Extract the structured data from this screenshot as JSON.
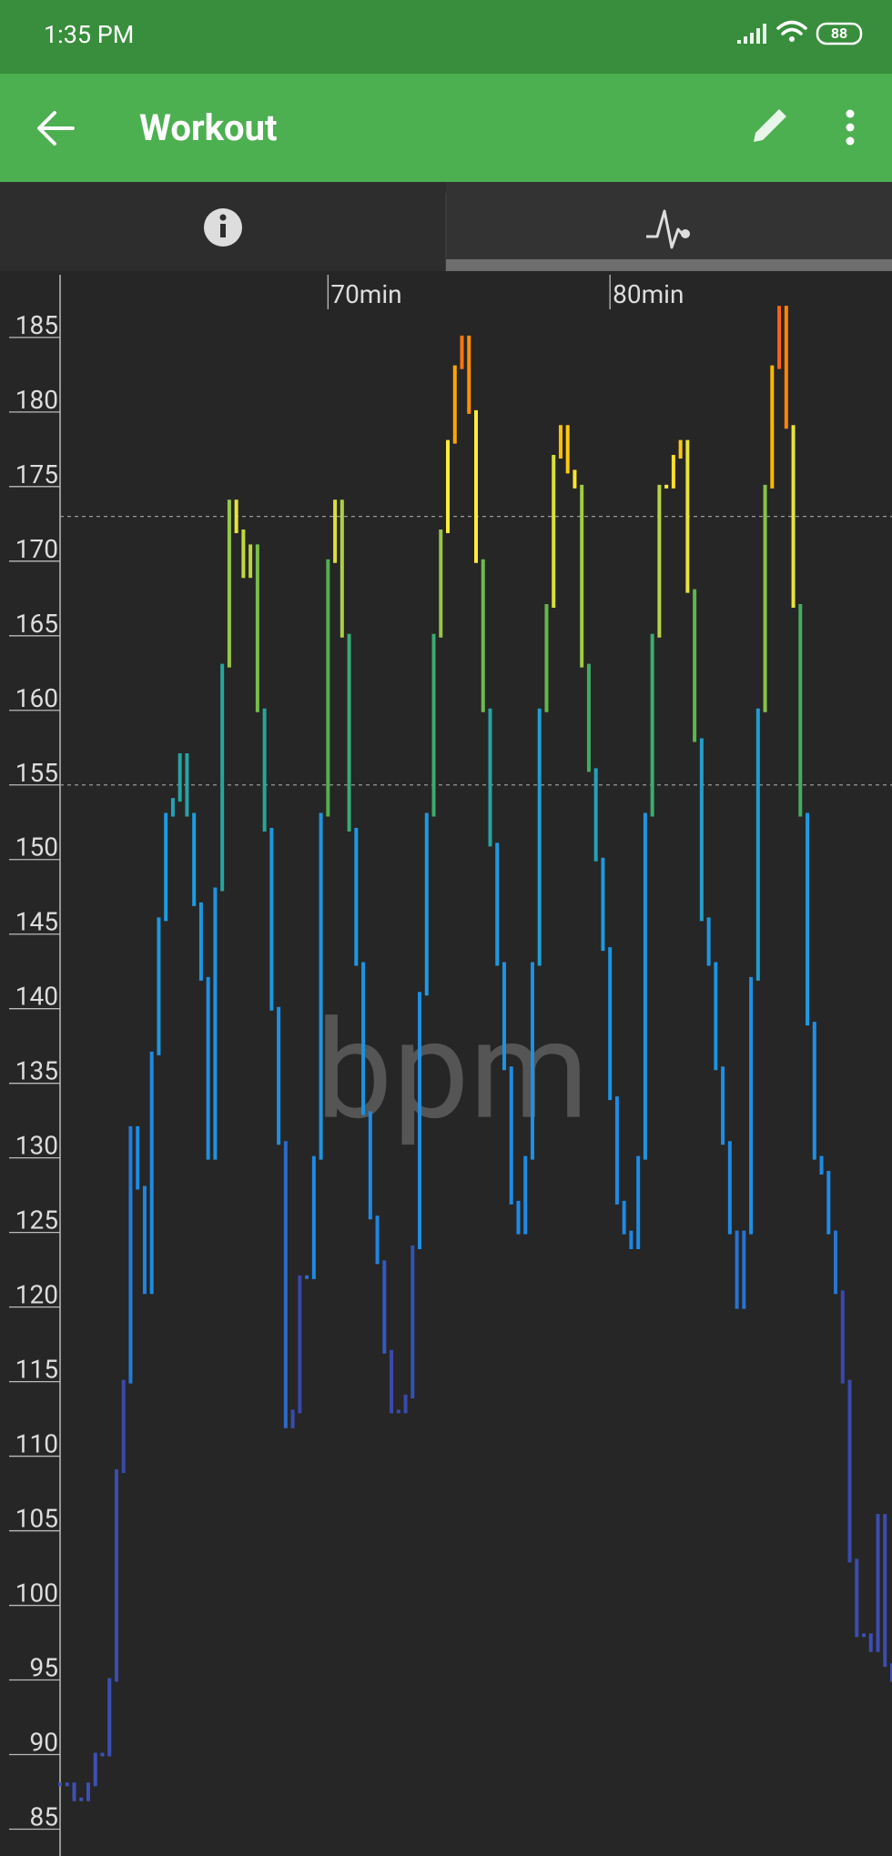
{
  "status_bar": {
    "time": "1:35 PM",
    "battery": "88"
  },
  "app_bar": {
    "title": "Workout"
  },
  "chart_data": {
    "type": "heart-rate-steps",
    "watermark": "bpm",
    "x": [
      60.5,
      60.75,
      61,
      61.25,
      61.5,
      61.75,
      62,
      62.25,
      62.5,
      62.75,
      63,
      63.25,
      63.5,
      63.75,
      64,
      64.25,
      64.5,
      64.75,
      65,
      65.25,
      65.5,
      65.75,
      66,
      66.25,
      66.5,
      66.75,
      67,
      67.25,
      67.5,
      67.75,
      68,
      68.25,
      68.5,
      68.75,
      69,
      69.25,
      69.5,
      69.75,
      70,
      70.25,
      70.5,
      70.75,
      71,
      71.25,
      71.5,
      71.75,
      72,
      72.25,
      72.5,
      72.75,
      73,
      73.25,
      73.5,
      73.75,
      74,
      74.25,
      74.5,
      74.75,
      75,
      75.25,
      75.5,
      75.75,
      76,
      76.25,
      76.5,
      76.75,
      77,
      77.25,
      77.5,
      77.75,
      78,
      78.25,
      78.5,
      78.75,
      79,
      79.25,
      79.5,
      79.75,
      80,
      80.25,
      80.5,
      80.75,
      81,
      81.25,
      81.5,
      81.75,
      82,
      82.25,
      82.5,
      82.75,
      83,
      83.25,
      83.5,
      83.75,
      84,
      84.25,
      84.5,
      84.75,
      85,
      85.25,
      85.5,
      85.75,
      86,
      86.25,
      86.5,
      86.75,
      87,
      87.25,
      87.5,
      87.75,
      88,
      88.25,
      88.5,
      88.75,
      89,
      89.25,
      89.5,
      89.75,
      90
    ],
    "values": [
      88,
      88,
      87,
      87,
      88,
      90,
      90,
      95,
      109,
      115,
      132,
      128,
      121,
      137,
      146,
      153,
      154,
      157,
      153,
      147,
      142,
      130,
      148,
      163,
      174,
      172,
      169,
      171,
      160,
      152,
      140,
      131,
      112,
      113,
      122,
      122,
      130,
      153,
      170,
      174,
      165,
      152,
      143,
      133,
      126,
      123,
      117,
      113,
      113,
      114,
      124,
      141,
      153,
      165,
      172,
      178,
      183,
      185,
      180,
      170,
      160,
      151,
      143,
      136,
      127,
      125,
      130,
      143,
      160,
      167,
      177,
      179,
      176,
      175,
      163,
      156,
      150,
      144,
      134,
      127,
      125,
      124,
      130,
      153,
      165,
      175,
      175,
      177,
      178,
      168,
      158,
      146,
      143,
      136,
      131,
      125,
      120,
      125,
      142,
      160,
      175,
      183,
      187,
      179,
      167,
      153,
      139,
      130,
      129,
      125,
      121,
      115,
      103,
      98,
      98,
      97,
      106,
      96,
      95
    ],
    "xlim": [
      60.5,
      90
    ],
    "ylim": [
      83.2,
      189.2
    ],
    "xticks": [
      {
        "value": 70,
        "label": "70min"
      },
      {
        "value": 80,
        "label": "80min"
      }
    ],
    "yticks": [
      85,
      90,
      95,
      100,
      105,
      110,
      115,
      120,
      125,
      130,
      135,
      140,
      145,
      150,
      155,
      160,
      165,
      170,
      175,
      180,
      185
    ],
    "reference_lines": [
      173,
      155
    ],
    "color_scale": [
      {
        "value": 85,
        "color": "#3f51b5"
      },
      {
        "value": 118,
        "color": "#3949ab"
      },
      {
        "value": 125,
        "color": "#1e88e5"
      },
      {
        "value": 150,
        "color": "#1e9be0"
      },
      {
        "value": 156,
        "color": "#26a69a"
      },
      {
        "value": 161,
        "color": "#4caf50"
      },
      {
        "value": 168,
        "color": "#8bc34a"
      },
      {
        "value": 171,
        "color": "#cddc39"
      },
      {
        "value": 175,
        "color": "#ffeb3b"
      },
      {
        "value": 178,
        "color": "#ffc107"
      },
      {
        "value": 182,
        "color": "#ff9800"
      },
      {
        "value": 186,
        "color": "#f4511e"
      }
    ]
  }
}
